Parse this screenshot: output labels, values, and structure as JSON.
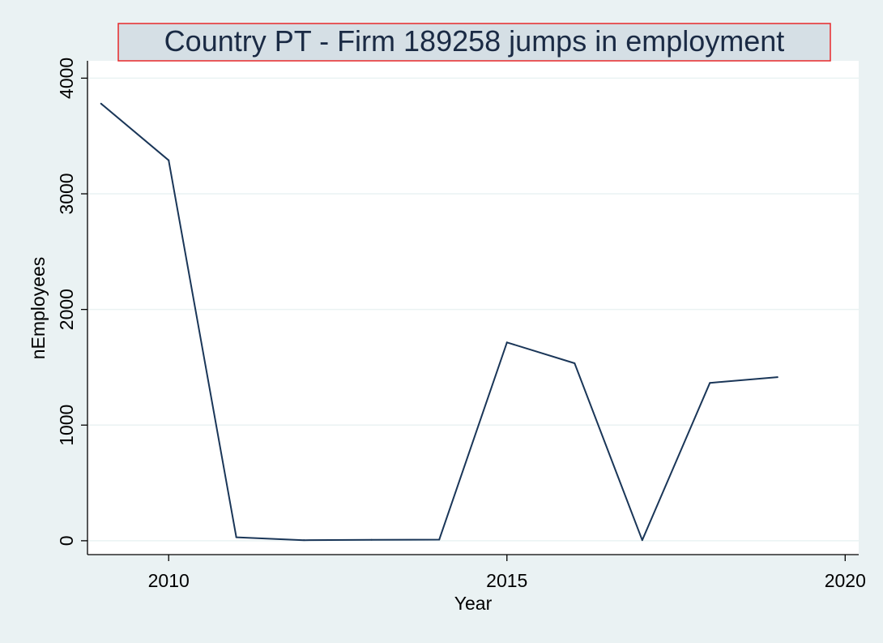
{
  "chart_data": {
    "type": "line",
    "title": "Country PT - Firm 189258  jumps in employment",
    "xlabel": "Year",
    "ylabel": "nEmployees",
    "xlim": [
      2008.8,
      2020.2
    ],
    "ylim": [
      -120,
      4150
    ],
    "xticks": [
      2010,
      2015,
      2020
    ],
    "yticks": [
      0,
      1000,
      2000,
      3000,
      4000
    ],
    "grid": true,
    "colors": {
      "line": "#1a3658",
      "title_border": "#e8282a",
      "background": "#eaf2f3",
      "plot_background": "#ffffff"
    },
    "series": [
      {
        "x": [
          2009,
          2010,
          2011,
          2012,
          2013,
          2014,
          2015,
          2016,
          2017,
          2018,
          2019
        ],
        "values": [
          3780,
          3290,
          30,
          5,
          8,
          10,
          1715,
          1535,
          5,
          1365,
          1415
        ]
      }
    ]
  }
}
